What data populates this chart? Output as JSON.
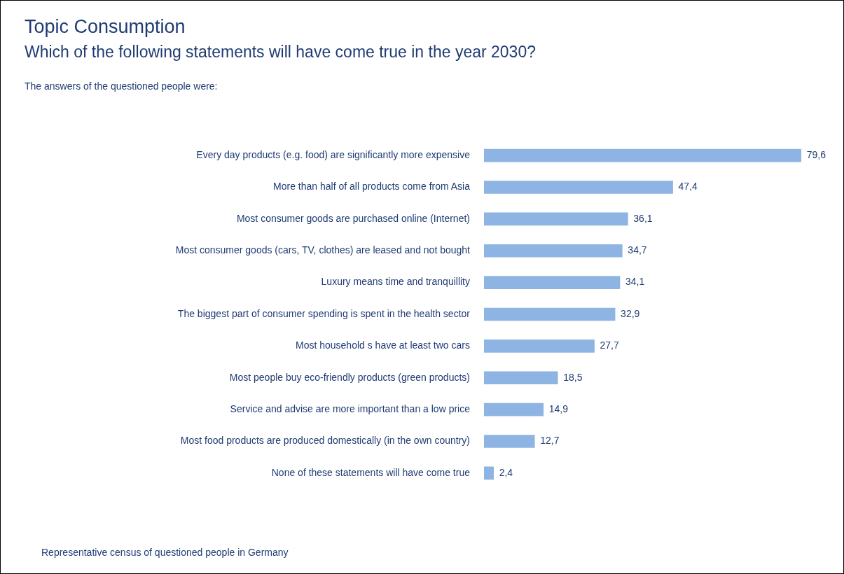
{
  "chart_data": {
    "type": "bar",
    "orientation": "horizontal",
    "title": "Topic Consumption",
    "subtitle": "Which of the following statements will have come true in the year 2030?",
    "annotations": [
      "The answers of the questioned people were:",
      "Representative census of questioned people in Germany"
    ],
    "categories": [
      "Every day products (e.g. food) are significantly more expensive",
      "More than half of all products come from Asia",
      "Most consumer goods are purchased online (Internet)",
      "Most consumer goods (cars, TV, clothes) are leased and not bought",
      "Luxury means time and tranquillity",
      "The biggest part of consumer spending is spent in the health sector",
      "Most household s have at least two cars",
      "Most people buy eco-friendly products (green products)",
      "Service and advise are more important than a low price",
      "Most food products are produced domestically (in the own country)",
      "None of these statements will have come true"
    ],
    "values": [
      79.6,
      47.4,
      36.1,
      34.7,
      34.1,
      32.9,
      27.7,
      18.5,
      14.9,
      12.7,
      2.4
    ],
    "value_labels": [
      "79,6",
      "47,4",
      "36,1",
      "34,7",
      "34,1",
      "32,9",
      "27,7",
      "18,5",
      "14,9",
      "12,7",
      "2,4"
    ],
    "color": "#8db4e2"
  }
}
